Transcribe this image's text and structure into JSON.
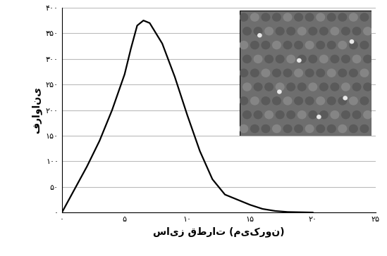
{
  "chart_data": {
    "type": "line",
    "x_label": "سایز قطرات (میکرون)",
    "y_label": "فراوانی",
    "x": [
      0,
      1,
      2,
      3,
      4,
      5,
      5.5,
      6,
      6.5,
      7,
      8,
      9,
      10,
      11,
      12,
      13,
      14,
      15,
      16,
      17,
      18,
      20
    ],
    "values": [
      0,
      45,
      90,
      140,
      200,
      270,
      320,
      365,
      375,
      370,
      330,
      265,
      190,
      120,
      65,
      35,
      25,
      15,
      7,
      3,
      1,
      0
    ],
    "color": "#000000",
    "xlim": [
      0,
      25
    ],
    "xticks": [
      {
        "value": 0,
        "label": "۰"
      },
      {
        "value": 5,
        "label": "۵"
      },
      {
        "value": 10,
        "label": "۱۰"
      },
      {
        "value": 15,
        "label": "۱۵"
      },
      {
        "value": 20,
        "label": "۲۰"
      },
      {
        "value": 25,
        "label": "۲۵"
      }
    ],
    "ylim": [
      0,
      400
    ],
    "yticks": [
      {
        "value": 0,
        "label": "۰"
      },
      {
        "value": 50,
        "label": "۵۰"
      },
      {
        "value": 100,
        "label": "۱۰۰"
      },
      {
        "value": 150,
        "label": "۱۵۰"
      },
      {
        "value": 200,
        "label": "۲۰۰"
      },
      {
        "value": 250,
        "label": "۲۵۰"
      },
      {
        "value": 300,
        "label": "۳۰۰"
      },
      {
        "value": 350,
        "label": "۳۵۰"
      },
      {
        "value": 400,
        "label": "۴۰۰"
      }
    ],
    "grid": true
  }
}
